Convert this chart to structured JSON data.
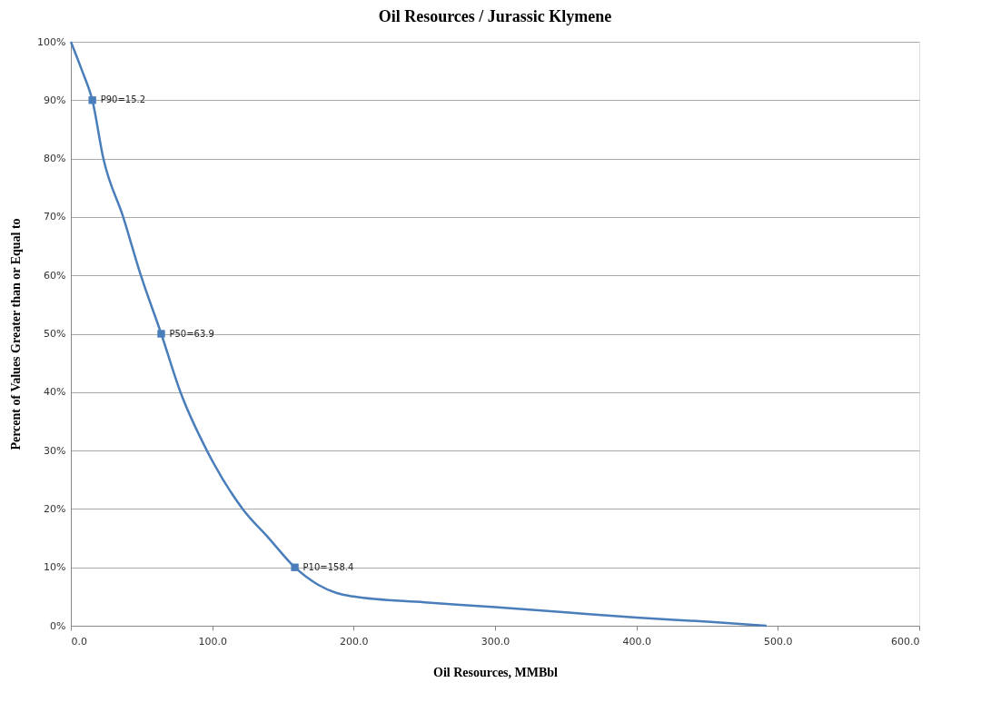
{
  "chart_data": {
    "type": "line",
    "title": "Oil Resources / Jurassic Klymene",
    "xlabel": "Oil Resources, MMBbl",
    "ylabel": "Percent of Values Greater than or Equal to",
    "series": [
      {
        "color": "#4a7ebb",
        "marker": "none",
        "x": [
          0,
          8,
          15.2,
          23,
          37,
          49.5,
          63.9,
          77.5,
          96.2,
          121.5,
          140,
          158.4,
          175,
          188,
          200,
          250,
          300,
          350,
          400,
          450,
          492
        ],
        "values": [
          100,
          95,
          90,
          80,
          70,
          60,
          50,
          40,
          30,
          20,
          15,
          10,
          7,
          5.6,
          5.0,
          4.0,
          3.2,
          2.3,
          1.4,
          0.7,
          0
        ]
      },
      {
        "type": "scatter",
        "color": "#4a7ebb",
        "marker": "square",
        "x": [
          15.2,
          63.9,
          158.4
        ],
        "values": [
          90,
          50,
          10
        ]
      }
    ],
    "annotations": [
      {
        "text": "P90=15.2",
        "x": 15.2,
        "y": 90
      },
      {
        "text": "P50=63.9",
        "x": 63.9,
        "y": 50
      },
      {
        "text": "P10=158.4",
        "x": 158.4,
        "y": 10
      }
    ],
    "xlim": [
      0,
      600
    ],
    "xticks": [
      {
        "value": 0,
        "label": "0.0"
      },
      {
        "value": 100,
        "label": "100.0"
      },
      {
        "value": 200,
        "label": "200.0"
      },
      {
        "value": 300,
        "label": "300.0"
      },
      {
        "value": 400,
        "label": "400.0"
      },
      {
        "value": 500,
        "label": "500.0"
      },
      {
        "value": 600,
        "label": "600.0"
      }
    ],
    "ylim": [
      0,
      100
    ],
    "yticks": [
      {
        "value": 0,
        "label": "0%"
      },
      {
        "value": 10,
        "label": "10%"
      },
      {
        "value": 20,
        "label": "20%"
      },
      {
        "value": 30,
        "label": "30%"
      },
      {
        "value": 40,
        "label": "40%"
      },
      {
        "value": 50,
        "label": "50%"
      },
      {
        "value": 60,
        "label": "60%"
      },
      {
        "value": 70,
        "label": "70%"
      },
      {
        "value": 80,
        "label": "80%"
      },
      {
        "value": 90,
        "label": "90%"
      },
      {
        "value": 100,
        "label": "100%"
      }
    ],
    "grid": "y"
  }
}
